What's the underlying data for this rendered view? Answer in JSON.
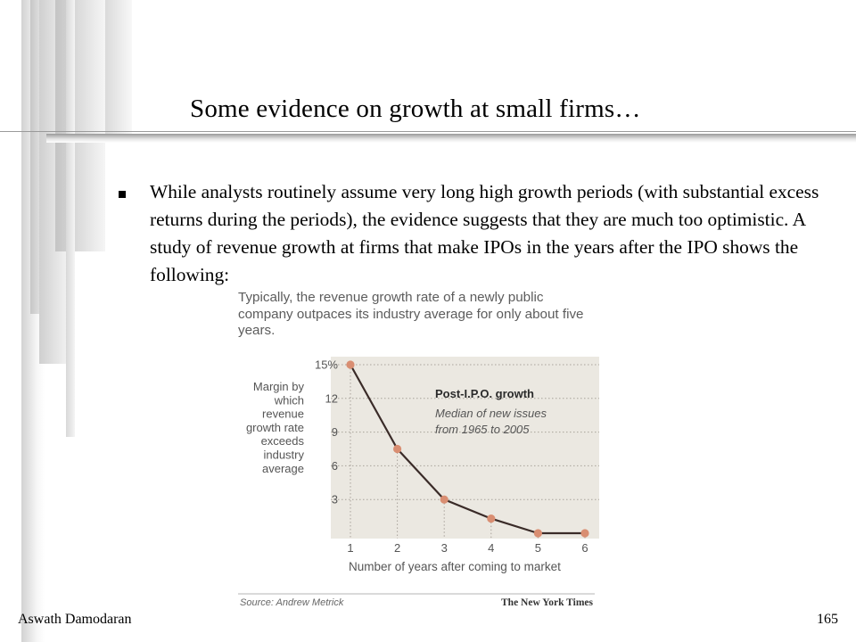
{
  "slide": {
    "title": "Some evidence on growth at small firms…",
    "bullet_text": "While analysts routinely assume very long high growth periods (with substantial excess returns during the periods), the evidence suggests that they are much too optimistic. A study of revenue growth at firms that make IPOs in the years after the IPO shows the following:"
  },
  "figure": {
    "caption": "Typically, the revenue growth rate of a newly public company outpaces its industry average for only about five years.",
    "ylabel_lines": [
      "Margin by",
      "which",
      "revenue",
      "growth rate",
      "exceeds",
      "industry",
      "average"
    ],
    "inset_title": "Post-I.P.O. growth",
    "inset_subtitle_lines": [
      "Median of new issues",
      "from 1965 to 2005"
    ],
    "source": "Source: Andrew Metrick",
    "publisher": "The New York Times"
  },
  "chart_data": {
    "type": "line",
    "xlabel": "Number of years after coming to market",
    "ylabel": "Margin by which revenue growth rate exceeds industry average",
    "x": [
      1,
      2,
      3,
      4,
      5,
      6
    ],
    "values": [
      15,
      7.5,
      3,
      1.3,
      0,
      0
    ],
    "y_ticks": [
      "3",
      "6",
      "9",
      "12",
      "15%"
    ],
    "y_tick_values": [
      3,
      6,
      9,
      12,
      15
    ],
    "ylim": [
      0,
      15
    ],
    "xlim": [
      1,
      6
    ],
    "grid": "dotted horizontal",
    "colors": {
      "background": "#ebe8e1",
      "line": "#3a2b28",
      "marker": "#d98e72",
      "grid": "#a8a29a"
    }
  },
  "footer": {
    "author": "Aswath Damodaran",
    "page_number": "165"
  }
}
